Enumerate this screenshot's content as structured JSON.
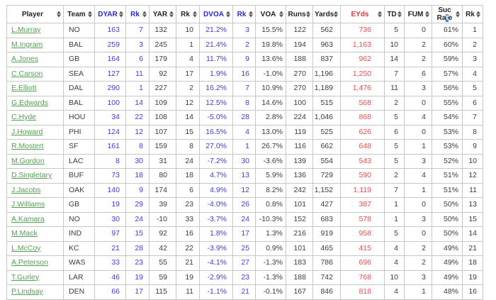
{
  "colors": {
    "header_text": "#222222",
    "header_blue": "#2727dd",
    "header_red": "#e83434",
    "stat_blue": "#3b3bf2",
    "eyds_red": "#fb4747",
    "player_green": "#55a055",
    "cell_text": "#3c3c3c",
    "border": "#c6c6c6",
    "selection_blue": "#3f7fe8"
  },
  "table": {
    "columns": [
      {
        "key": "player",
        "label": "Player",
        "color": "default"
      },
      {
        "key": "team",
        "label": "Team",
        "color": "default"
      },
      {
        "key": "dyar",
        "label": "DYAR",
        "color": "blue"
      },
      {
        "key": "dyar_rk",
        "label": "Rk",
        "color": "blue"
      },
      {
        "key": "yar",
        "label": "YAR",
        "color": "default"
      },
      {
        "key": "yar_rk",
        "label": "Rk",
        "color": "default"
      },
      {
        "key": "dvoa",
        "label": "DVOA",
        "color": "blue"
      },
      {
        "key": "dvoa_rk",
        "label": "Rk",
        "color": "blue"
      },
      {
        "key": "voa",
        "label": "VOA",
        "color": "default"
      },
      {
        "key": "runs",
        "label": "Runs",
        "color": "default"
      },
      {
        "key": "yards",
        "label": "Yards",
        "color": "default"
      },
      {
        "key": "eyds",
        "label": "EYds",
        "color": "red"
      },
      {
        "key": "td",
        "label": "TD",
        "color": "default"
      },
      {
        "key": "fum",
        "label": "FUM",
        "color": "default"
      },
      {
        "key": "suc_rate",
        "label": "Suc Rate",
        "line1": "Suc",
        "line2_pre": "Ra",
        "line2_sel": "t",
        "line2_post": "e",
        "color": "default"
      },
      {
        "key": "suc_rk",
        "label": "Rk",
        "color": "default"
      }
    ],
    "rows": [
      [
        "L.Murray",
        "NO",
        "163",
        "7",
        "132",
        "10",
        "21.2%",
        "3",
        "15.5%",
        "122",
        "562",
        "736",
        "5",
        "0",
        "61%",
        "1"
      ],
      [
        "M.Ingram",
        "BAL",
        "259",
        "3",
        "245",
        "1",
        "21.4%",
        "2",
        "19.8%",
        "194",
        "963",
        "1,163",
        "10",
        "2",
        "60%",
        "2"
      ],
      [
        "A.Jones",
        "GB",
        "164",
        "6",
        "179",
        "4",
        "11.7%",
        "9",
        "13.6%",
        "188",
        "837",
        "962",
        "14",
        "2",
        "59%",
        "3"
      ],
      [
        "C.Carson",
        "SEA",
        "127",
        "11",
        "92",
        "17",
        "1.9%",
        "16",
        "-1.0%",
        "270",
        "1,196",
        "1,250",
        "7",
        "6",
        "57%",
        "4"
      ],
      [
        "E.Elliott",
        "DAL",
        "290",
        "1",
        "227",
        "2",
        "16.2%",
        "7",
        "10.9%",
        "270",
        "1,189",
        "1,476",
        "11",
        "3",
        "56%",
        "5"
      ],
      [
        "G.Edwards",
        "BAL",
        "100",
        "14",
        "109",
        "12",
        "12.5%",
        "8",
        "14.6%",
        "100",
        "515",
        "568",
        "2",
        "0",
        "55%",
        "6"
      ],
      [
        "C.Hyde",
        "HOU",
        "34",
        "22",
        "108",
        "14",
        "-5.0%",
        "28",
        "2.8%",
        "224",
        "1,046",
        "868",
        "5",
        "4",
        "54%",
        "7"
      ],
      [
        "J.Howard",
        "PHI",
        "124",
        "12",
        "107",
        "15",
        "16.5%",
        "4",
        "13.0%",
        "119",
        "525",
        "626",
        "6",
        "0",
        "53%",
        "8"
      ],
      [
        "R.Mostert",
        "SF",
        "161",
        "8",
        "159",
        "8",
        "27.0%",
        "1",
        "26.7%",
        "116",
        "662",
        "648",
        "5",
        "1",
        "53%",
        "9"
      ],
      [
        "M.Gordon",
        "LAC",
        "8",
        "30",
        "31",
        "24",
        "-7.2%",
        "30",
        "-3.6%",
        "139",
        "554",
        "543",
        "5",
        "3",
        "52%",
        "10"
      ],
      [
        "D.Singletary",
        "BUF",
        "73",
        "18",
        "80",
        "18",
        "4.7%",
        "13",
        "5.9%",
        "136",
        "729",
        "590",
        "2",
        "4",
        "51%",
        "12"
      ],
      [
        "J.Jacobs",
        "OAK",
        "140",
        "9",
        "174",
        "6",
        "4.9%",
        "12",
        "8.2%",
        "242",
        "1,152",
        "1,119",
        "7",
        "1",
        "51%",
        "11"
      ],
      [
        "J.Williams",
        "GB",
        "19",
        "29",
        "39",
        "23",
        "-4.0%",
        "26",
        "0.8%",
        "101",
        "427",
        "387",
        "1",
        "0",
        "50%",
        "13"
      ],
      [
        "A.Kamara",
        "NO",
        "30",
        "24",
        "-10",
        "33",
        "-3.7%",
        "24",
        "-10.3%",
        "152",
        "683",
        "578",
        "1",
        "3",
        "50%",
        "15"
      ],
      [
        "M.Mack",
        "IND",
        "97",
        "15",
        "92",
        "16",
        "1.8%",
        "17",
        "1.3%",
        "216",
        "919",
        "958",
        "5",
        "0",
        "50%",
        "14"
      ],
      [
        "L.McCoy",
        "KC",
        "21",
        "28",
        "42",
        "22",
        "-3.9%",
        "25",
        "0.9%",
        "101",
        "465",
        "415",
        "4",
        "2",
        "49%",
        "21"
      ],
      [
        "A.Peterson",
        "WAS",
        "33",
        "23",
        "55",
        "21",
        "-4.1%",
        "27",
        "-1.3%",
        "183",
        "786",
        "696",
        "4",
        "2",
        "49%",
        "18"
      ],
      [
        "T.Gurley",
        "LAR",
        "46",
        "19",
        "59",
        "19",
        "-2.9%",
        "23",
        "-1.3%",
        "188",
        "742",
        "768",
        "10",
        "3",
        "49%",
        "19"
      ]
    ],
    "partial_row": [
      "P.Lindsay",
      "DEN",
      "66",
      "17",
      "115",
      "11",
      "-1.1%",
      "21",
      "-0.1%",
      "167",
      "846",
      "818",
      "4",
      "1",
      "48%",
      "16"
    ]
  }
}
